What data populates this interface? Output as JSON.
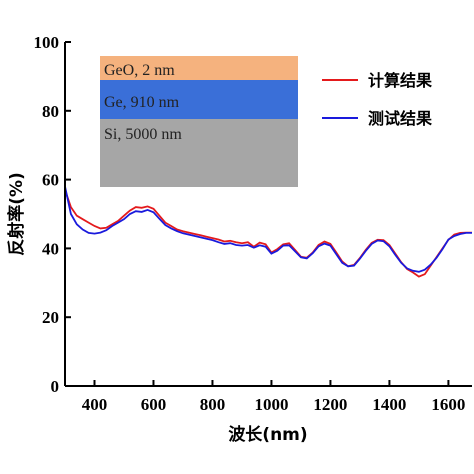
{
  "chart_data": {
    "type": "line",
    "xlabel": "波长(nm)",
    "ylabel": "反射率(%)",
    "xlim": [
      300,
      1680
    ],
    "ylim": [
      0,
      100
    ],
    "xticks": [
      400,
      600,
      800,
      1000,
      1200,
      1400,
      1600
    ],
    "yticks": [
      0,
      20,
      40,
      60,
      80,
      100
    ],
    "grid": false,
    "legend_position": "top-right",
    "series": [
      {
        "name": "计算结果",
        "color": "#e41a1c",
        "x": [
          300,
          320,
          340,
          360,
          380,
          400,
          420,
          440,
          460,
          480,
          500,
          520,
          540,
          560,
          580,
          600,
          620,
          640,
          660,
          680,
          700,
          720,
          740,
          760,
          780,
          800,
          820,
          840,
          860,
          880,
          900,
          920,
          940,
          960,
          980,
          1000,
          1020,
          1040,
          1060,
          1080,
          1100,
          1120,
          1140,
          1160,
          1180,
          1200,
          1220,
          1240,
          1260,
          1280,
          1300,
          1320,
          1340,
          1360,
          1380,
          1400,
          1420,
          1440,
          1460,
          1480,
          1500,
          1520,
          1540,
          1560,
          1580,
          1600,
          1620,
          1640,
          1660,
          1680
        ],
        "values": [
          57,
          52,
          49.5,
          48.5,
          47.5,
          46.5,
          45.8,
          46,
          47,
          48,
          49.5,
          51,
          52,
          51.8,
          52.2,
          51.5,
          49.5,
          47.5,
          46.5,
          45.5,
          45,
          44.6,
          44.2,
          43.8,
          43.4,
          43,
          42.6,
          42,
          42.2,
          41.8,
          41.5,
          41.8,
          40.5,
          41.7,
          41.2,
          38.8,
          39.8,
          41.2,
          41.5,
          39.6,
          37.6,
          37.3,
          38.8,
          41,
          42,
          41.3,
          38.8,
          36.2,
          34.8,
          35.2,
          37.2,
          39.6,
          41.6,
          42.5,
          42.4,
          41,
          38.5,
          36,
          34,
          33,
          31.8,
          32.5,
          35,
          37.5,
          40,
          42.5,
          44,
          44.5,
          44.6,
          44.6
        ]
      },
      {
        "name": "测试结果",
        "color": "#1a1adc",
        "x": [
          300,
          320,
          340,
          360,
          380,
          400,
          420,
          440,
          460,
          480,
          500,
          520,
          540,
          560,
          580,
          600,
          620,
          640,
          660,
          680,
          700,
          720,
          740,
          760,
          780,
          800,
          820,
          840,
          860,
          880,
          900,
          920,
          940,
          960,
          980,
          1000,
          1020,
          1040,
          1060,
          1080,
          1100,
          1120,
          1140,
          1160,
          1180,
          1200,
          1220,
          1240,
          1260,
          1280,
          1300,
          1320,
          1340,
          1360,
          1380,
          1400,
          1420,
          1440,
          1460,
          1480,
          1500,
          1520,
          1540,
          1560,
          1580,
          1600,
          1620,
          1640,
          1660,
          1680
        ],
        "values": [
          58,
          50,
          47,
          45.5,
          44.5,
          44.3,
          44.6,
          45.3,
          46.5,
          47.5,
          48.5,
          50,
          50.8,
          50.6,
          51.2,
          50.5,
          48.6,
          46.8,
          45.8,
          45,
          44.4,
          44,
          43.6,
          43.2,
          42.8,
          42.4,
          41.8,
          41.3,
          41.5,
          41,
          40.8,
          41,
          40.2,
          40.9,
          40.5,
          38.5,
          39.3,
          40.8,
          40.9,
          39.2,
          37.4,
          37.1,
          38.6,
          40.6,
          41.4,
          40.8,
          38.3,
          35.8,
          34.8,
          35,
          37,
          39.3,
          41.3,
          42.3,
          42.1,
          40.6,
          38.1,
          35.8,
          34.2,
          33.5,
          33.2,
          33.8,
          35.3,
          37.3,
          39.8,
          42.6,
          43.6,
          44.2,
          44.5,
          44.5
        ]
      }
    ],
    "inset": {
      "layers": [
        {
          "label": "GeO, 2 nm",
          "color": "#f5b27e"
        },
        {
          "label": "Ge, 910 nm",
          "color": "#3a6fd8"
        },
        {
          "label": "Si, 5000 nm",
          "color": "#a6a6a6"
        }
      ]
    }
  }
}
